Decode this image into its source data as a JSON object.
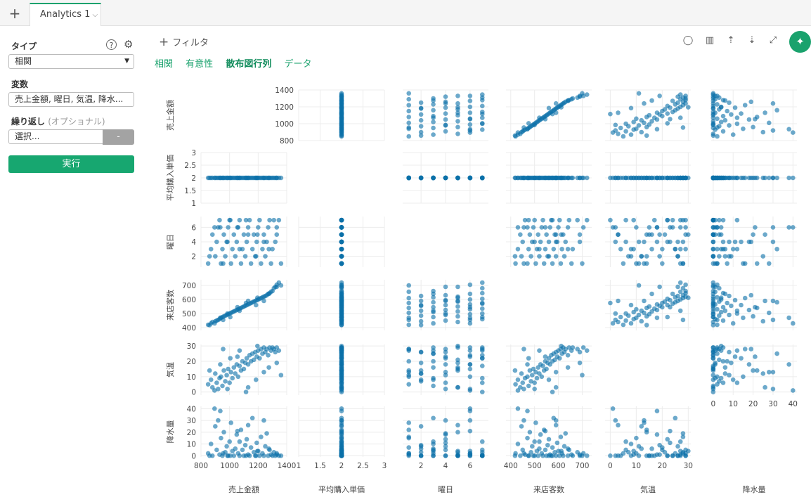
{
  "tabbar": {
    "tab_label": "Analytics 1"
  },
  "sidebar": {
    "type_label": "タイプ",
    "type_value": "相関",
    "vars_label": "変数",
    "vars_value": "売上金額, 曜日, 気温, 降水...",
    "repeat_label": "繰り返し",
    "repeat_optional": "(オプショナル)",
    "repeat_placeholder": "選択...",
    "dash": "-",
    "run_label": "実行"
  },
  "toolbar": {
    "filter_label": "フィルタ",
    "tabs": [
      "相関",
      "有意性",
      "散布図行列",
      "データ"
    ],
    "active_tab": "散布図行列",
    "icons": [
      "comment-icon",
      "chart-icon",
      "upload-icon",
      "download-icon",
      "expand-icon",
      "pin-icon"
    ]
  },
  "chart_data": {
    "type": "scatter",
    "title": "",
    "variables": [
      "売上金額",
      "平均購入単価",
      "曜日",
      "来店客数",
      "気温",
      "降水量"
    ],
    "ranges": [
      [
        800,
        1400
      ],
      [
        1,
        3
      ],
      [
        0.5,
        7.5
      ],
      [
        380,
        740
      ],
      [
        -2,
        31
      ],
      [
        -1,
        42
      ]
    ],
    "ticks": [
      [
        800,
        1000,
        1200,
        1400
      ],
      [
        1,
        1.5,
        2,
        2.5,
        3
      ],
      [
        2,
        4,
        6
      ],
      [
        400,
        500,
        600,
        700
      ],
      [
        0,
        10,
        20,
        30
      ],
      [
        0,
        10,
        20,
        30,
        40
      ]
    ],
    "x_tick_labels": [
      [
        "800",
        "1000",
        "1200",
        "1400"
      ],
      [
        "1",
        "1.5",
        "2",
        "2.5",
        "3"
      ],
      [
        "2",
        "4",
        "6"
      ],
      [
        "400",
        "500",
        "600",
        "700"
      ],
      [
        "0",
        "10",
        "20",
        "30"
      ],
      [
        "0",
        "10",
        "20",
        "30",
        "40"
      ]
    ],
    "y_tick_labels": [
      [
        "800",
        "1000",
        "1200",
        "1400"
      ],
      [
        "1",
        "1.5",
        "2",
        "2.5",
        "3"
      ],
      [
        "2",
        "4",
        "6"
      ],
      [
        "400",
        "500",
        "600",
        "700"
      ],
      [
        "0",
        "10",
        "20",
        "30"
      ],
      [
        "0",
        "10",
        "20",
        "30",
        "40"
      ]
    ],
    "observations": [
      [
        850,
        2,
        1,
        420,
        5,
        2
      ],
      [
        870,
        2,
        3,
        430,
        8,
        10
      ],
      [
        880,
        2,
        5,
        440,
        3,
        0
      ],
      [
        900,
        2,
        2,
        445,
        12,
        25
      ],
      [
        910,
        2,
        4,
        450,
        6,
        5
      ],
      [
        920,
        2,
        6,
        455,
        2,
        30
      ],
      [
        930,
        2,
        7,
        460,
        9,
        1
      ],
      [
        940,
        2,
        1,
        470,
        10,
        15
      ],
      [
        950,
        2,
        3,
        475,
        4,
        0
      ],
      [
        960,
        2,
        5,
        480,
        14,
        20
      ],
      [
        970,
        2,
        2,
        485,
        7,
        3
      ],
      [
        980,
        2,
        4,
        490,
        11,
        8
      ],
      [
        990,
        2,
        6,
        495,
        15,
        0
      ],
      [
        1000,
        2,
        7,
        500,
        6,
        12
      ],
      [
        1010,
        2,
        1,
        505,
        13,
        28
      ],
      [
        1020,
        2,
        3,
        510,
        9,
        4
      ],
      [
        1030,
        2,
        5,
        515,
        16,
        0
      ],
      [
        1040,
        2,
        2,
        520,
        12,
        6
      ],
      [
        1050,
        2,
        4,
        525,
        18,
        18
      ],
      [
        1060,
        2,
        6,
        530,
        10,
        2
      ],
      [
        1070,
        2,
        7,
        535,
        17,
        0
      ],
      [
        1080,
        2,
        1,
        540,
        14,
        22
      ],
      [
        1090,
        2,
        3,
        545,
        20,
        5
      ],
      [
        1100,
        2,
        5,
        550,
        15,
        0
      ],
      [
        1110,
        2,
        2,
        555,
        19,
        9
      ],
      [
        1120,
        2,
        4,
        560,
        22,
        14
      ],
      [
        1130,
        2,
        6,
        565,
        18,
        1
      ],
      [
        1140,
        2,
        7,
        570,
        24,
        0
      ],
      [
        1150,
        2,
        1,
        575,
        20,
        7
      ],
      [
        1160,
        2,
        3,
        580,
        25,
        32
      ],
      [
        1170,
        2,
        5,
        585,
        21,
        3
      ],
      [
        1180,
        2,
        2,
        590,
        26,
        0
      ],
      [
        1190,
        2,
        4,
        595,
        23,
        11
      ],
      [
        1200,
        2,
        6,
        600,
        27,
        4
      ],
      [
        1210,
        2,
        7,
        605,
        22,
        0
      ],
      [
        1220,
        2,
        1,
        610,
        28,
        16
      ],
      [
        1230,
        2,
        3,
        615,
        25,
        2
      ],
      [
        1240,
        2,
        5,
        620,
        29,
        0
      ],
      [
        1250,
        2,
        2,
        625,
        26,
        8
      ],
      [
        1260,
        2,
        4,
        630,
        28,
        19
      ],
      [
        1270,
        2,
        6,
        640,
        24,
        0
      ],
      [
        1280,
        2,
        7,
        645,
        29,
        5
      ],
      [
        1290,
        2,
        1,
        655,
        27,
        1
      ],
      [
        1300,
        2,
        3,
        660,
        29,
        0
      ],
      [
        1310,
        2,
        7,
        680,
        28,
        3
      ],
      [
        1320,
        2,
        4,
        690,
        26,
        0
      ],
      [
        1330,
        2,
        6,
        705,
        29,
        2
      ],
      [
        1345,
        2,
        7,
        720,
        27,
        0
      ],
      [
        895,
        2,
        6,
        430,
        1,
        40
      ],
      [
        1360,
        2,
        1,
        700,
        11,
        0
      ],
      [
        1005,
        2,
        7,
        475,
        22,
        0
      ],
      [
        1130,
        2,
        5,
        590,
        3,
        26
      ],
      [
        955,
        2,
        1,
        455,
        28,
        2
      ],
      [
        1185,
        2,
        2,
        560,
        8,
        0
      ],
      [
        1070,
        2,
        3,
        520,
        27,
        12
      ],
      [
        1240,
        2,
        4,
        590,
        13,
        30
      ],
      [
        1330,
        2,
        5,
        690,
        19,
        1
      ],
      [
        935,
        2,
        6,
        470,
        18,
        38
      ],
      [
        1115,
        2,
        7,
        575,
        0,
        0
      ],
      [
        1275,
        2,
        3,
        640,
        16,
        6
      ],
      [
        860,
        2,
        2,
        418,
        14,
        0
      ],
      [
        1195,
        2,
        5,
        612,
        30,
        4
      ],
      [
        1055,
        2,
        6,
        545,
        23,
        21
      ],
      [
        985,
        2,
        4,
        500,
        2,
        0
      ]
    ]
  }
}
